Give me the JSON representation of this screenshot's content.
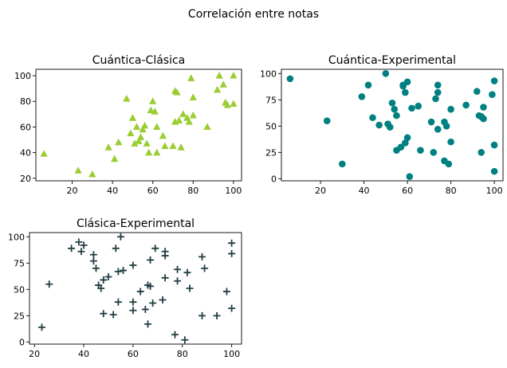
{
  "figure": {
    "suptitle": "Correlación entre notas"
  },
  "chart_data": [
    {
      "type": "scatter",
      "title": "Cuántica-Clásica",
      "xlabel": "",
      "ylabel": "",
      "marker": "triangle",
      "color": "#9acd32",
      "xlim": [
        2,
        104
      ],
      "ylim": [
        18,
        105
      ],
      "xticks": [
        20,
        40,
        60,
        80,
        100
      ],
      "yticks": [
        20,
        40,
        60,
        80,
        100
      ],
      "grid": false,
      "points": [
        [
          6,
          39
        ],
        [
          23,
          26
        ],
        [
          30,
          23
        ],
        [
          38,
          44
        ],
        [
          41,
          35
        ],
        [
          43,
          48
        ],
        [
          47,
          82
        ],
        [
          49,
          55
        ],
        [
          50,
          67
        ],
        [
          51,
          47
        ],
        [
          52,
          60
        ],
        [
          53,
          49
        ],
        [
          54,
          52
        ],
        [
          55,
          58
        ],
        [
          56,
          61
        ],
        [
          57,
          47
        ],
        [
          58,
          40
        ],
        [
          59,
          73
        ],
        [
          60,
          80
        ],
        [
          61,
          72
        ],
        [
          62,
          60
        ],
        [
          62,
          40
        ],
        [
          65,
          53
        ],
        [
          66,
          45
        ],
        [
          70,
          45
        ],
        [
          71,
          64
        ],
        [
          72,
          87
        ],
        [
          73,
          65
        ],
        [
          74,
          44
        ],
        [
          75,
          70
        ],
        [
          77,
          67
        ],
        [
          78,
          64
        ],
        [
          79,
          98
        ],
        [
          80,
          83
        ],
        [
          80,
          69
        ],
        [
          87,
          60
        ],
        [
          92,
          89
        ],
        [
          93,
          100
        ],
        [
          95,
          93
        ],
        [
          96,
          79
        ],
        [
          97,
          77
        ],
        [
          100,
          100
        ],
        [
          100,
          78
        ],
        [
          71,
          88
        ]
      ]
    },
    {
      "type": "scatter",
      "title": "Cuántica-Experimental",
      "xlabel": "",
      "ylabel": "",
      "marker": "circle",
      "color": "#008080",
      "xlim": [
        2,
        104
      ],
      "ylim": [
        -2,
        104
      ],
      "xticks": [
        20,
        40,
        60,
        80,
        100
      ],
      "yticks": [
        0,
        25,
        50,
        75,
        100
      ],
      "grid": false,
      "points": [
        [
          6,
          95
        ],
        [
          23,
          55
        ],
        [
          30,
          14
        ],
        [
          39,
          78
        ],
        [
          42,
          89
        ],
        [
          44,
          58
        ],
        [
          47,
          51
        ],
        [
          50,
          100
        ],
        [
          51,
          52
        ],
        [
          52,
          49
        ],
        [
          53,
          72
        ],
        [
          54,
          66
        ],
        [
          55,
          27
        ],
        [
          55,
          60
        ],
        [
          57,
          30
        ],
        [
          58,
          89
        ],
        [
          58,
          88
        ],
        [
          59,
          82
        ],
        [
          59,
          34
        ],
        [
          60,
          92
        ],
        [
          60,
          39
        ],
        [
          61,
          2
        ],
        [
          62,
          67
        ],
        [
          65,
          69
        ],
        [
          66,
          27
        ],
        [
          71,
          54
        ],
        [
          72,
          25
        ],
        [
          73,
          76
        ],
        [
          74,
          82
        ],
        [
          74,
          89
        ],
        [
          74,
          47
        ],
        [
          77,
          17
        ],
        [
          77,
          54
        ],
        [
          78,
          50
        ],
        [
          79,
          14
        ],
        [
          80,
          35
        ],
        [
          80,
          66
        ],
        [
          87,
          70
        ],
        [
          92,
          83
        ],
        [
          93,
          60
        ],
        [
          94,
          25
        ],
        [
          94,
          59
        ],
        [
          95,
          68
        ],
        [
          95,
          57
        ],
        [
          99,
          80
        ],
        [
          100,
          93
        ],
        [
          100,
          7
        ],
        [
          100,
          32
        ]
      ]
    },
    {
      "type": "scatter",
      "title": "Clásica-Experimental",
      "xlabel": "",
      "ylabel": "",
      "marker": "plus",
      "color": "#223f44",
      "xlim": [
        18,
        104
      ],
      "ylim": [
        -2,
        104
      ],
      "xticks": [
        20,
        40,
        60,
        80,
        100
      ],
      "yticks": [
        0,
        25,
        50,
        75,
        100
      ],
      "grid": false,
      "points": [
        [
          23,
          14
        ],
        [
          26,
          55
        ],
        [
          35,
          89
        ],
        [
          38,
          95
        ],
        [
          39,
          86
        ],
        [
          40,
          92
        ],
        [
          44,
          83
        ],
        [
          44,
          77
        ],
        [
          45,
          70
        ],
        [
          46,
          54
        ],
        [
          47,
          51
        ],
        [
          48,
          59
        ],
        [
          48,
          27
        ],
        [
          50,
          62
        ],
        [
          52,
          26
        ],
        [
          53,
          89
        ],
        [
          54,
          38
        ],
        [
          54,
          67
        ],
        [
          55,
          100
        ],
        [
          56,
          68
        ],
        [
          60,
          73
        ],
        [
          60,
          38
        ],
        [
          60,
          30
        ],
        [
          63,
          48
        ],
        [
          65,
          31
        ],
        [
          66,
          54
        ],
        [
          66,
          17
        ],
        [
          67,
          53
        ],
        [
          67,
          78
        ],
        [
          68,
          37
        ],
        [
          69,
          89
        ],
        [
          72,
          40
        ],
        [
          73,
          61
        ],
        [
          73,
          82
        ],
        [
          73,
          86
        ],
        [
          77,
          7
        ],
        [
          78,
          69
        ],
        [
          78,
          58
        ],
        [
          81,
          2
        ],
        [
          82,
          66
        ],
        [
          83,
          51
        ],
        [
          88,
          81
        ],
        [
          88,
          25
        ],
        [
          89,
          70
        ],
        [
          94,
          25
        ],
        [
          98,
          48
        ],
        [
          100,
          94
        ],
        [
          100,
          84
        ],
        [
          100,
          32
        ]
      ]
    }
  ]
}
